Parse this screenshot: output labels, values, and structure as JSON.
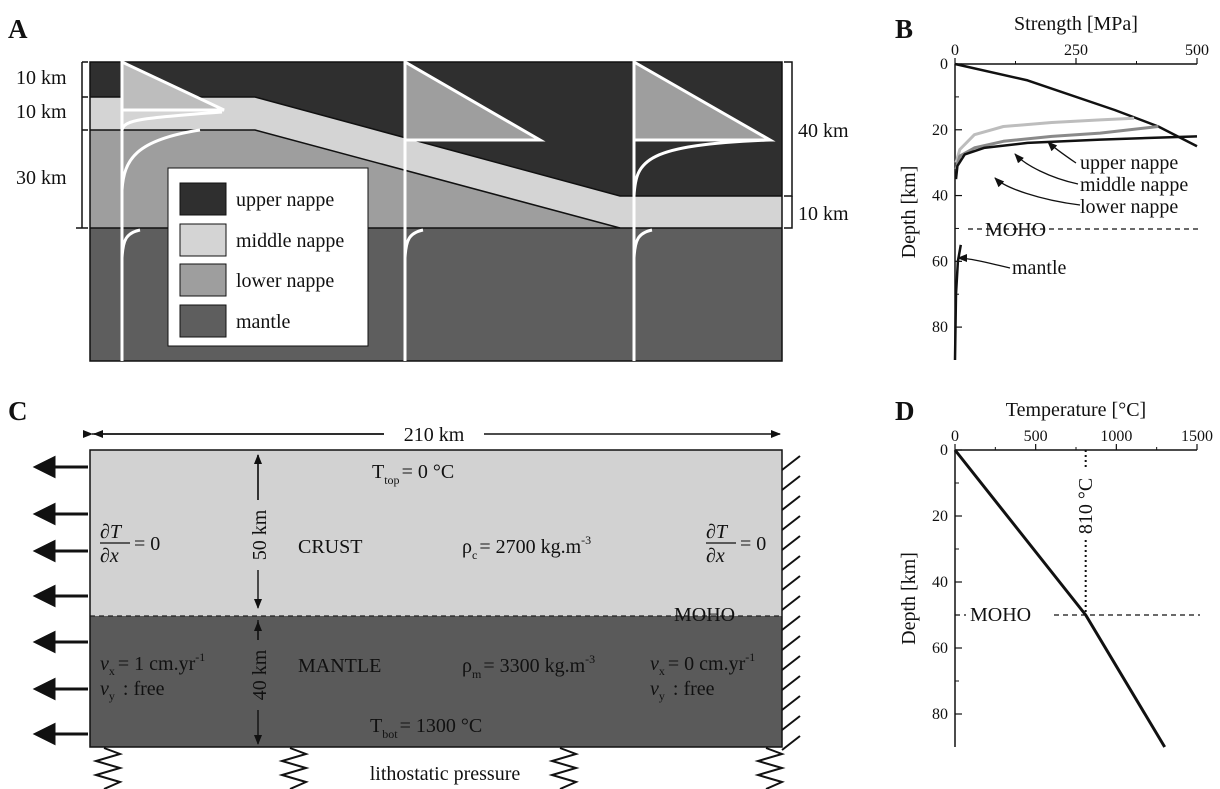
{
  "colors": {
    "upper_nappe": "#2f2f2f",
    "middle_nappe": "#d4d4d4",
    "lower_nappe": "#9e9e9e",
    "mantle": "#5e5e5e",
    "crust_model": "#d2d2d2",
    "mantle_model": "#5a5a5a",
    "curve_white": "#ffffff",
    "ink": "#111111"
  },
  "panel_a": {
    "label": "A",
    "thickness_left": [
      "10 km",
      "10 km",
      "30 km"
    ],
    "thickness_right": [
      "40 km",
      "10 km"
    ],
    "legend": [
      "upper nappe",
      "middle nappe",
      "lower nappe",
      "mantle"
    ]
  },
  "panel_b": {
    "label": "B",
    "annotations": {
      "upper": "upper nappe",
      "middle": "middle nappe",
      "lower": "lower nappe",
      "moho": "MOHO",
      "mantle": "mantle"
    }
  },
  "panel_c": {
    "label": "C",
    "width_label": "210 km",
    "t_top": "T",
    "t_top_sub": "top",
    "t_top_val": "= 0 °C",
    "t_bot": "T",
    "t_bot_sub": "bot",
    "t_bot_val": "= 1300 °C",
    "crust_label": "CRUST",
    "mantle_label": "MANTLE",
    "crust_thickness": "50 km",
    "mantle_thickness": "40 km",
    "rho_c": "ρ",
    "rho_c_sub": "c",
    "rho_c_val": "= 2700 kg.m",
    "rho_m": "ρ",
    "rho_m_sub": "m",
    "rho_m_val": "= 3300 kg.m",
    "rho_exp": "-3",
    "dTdx_num": "∂T",
    "dTdx_den": "∂x",
    "dTdx_eq": "= 0",
    "moho": "MOHO",
    "vx_left": "= 1 cm.yr",
    "vx_right": "= 0 cm.yr",
    "v_exp": "-1",
    "vy": ": free",
    "v_sym": "v",
    "vx_sub": "x",
    "vy_sub": "y",
    "bottom_label": "lithostatic pressure"
  },
  "panel_d": {
    "label": "D",
    "moho": "MOHO",
    "moho_temp": "810 °C"
  },
  "chart_data": [
    {
      "type": "line",
      "title": "",
      "xlabel": "Strength [MPa]",
      "ylabel": "Depth [km]",
      "xlim": [
        0,
        500
      ],
      "ylim": [
        90,
        0
      ],
      "x_ticks": [
        0,
        250,
        500
      ],
      "y_ticks": [
        0,
        20,
        40,
        60,
        80
      ],
      "moho_depth": 50,
      "series": [
        {
          "name": "upper nappe",
          "x": [
            0,
            150,
            330,
            420,
            500
          ],
          "y": [
            0,
            5,
            14,
            19,
            25
          ]
        },
        {
          "name": "middle nappe",
          "x": [
            2,
            10,
            40,
            100,
            200,
            300,
            370
          ],
          "y": [
            30,
            26,
            21.5,
            19,
            17.8,
            17,
            16.5
          ]
        },
        {
          "name": "lower nappe",
          "x": [
            2,
            10,
            40,
            100,
            200,
            300,
            420
          ],
          "y": [
            32,
            28,
            25.5,
            23.5,
            22,
            21,
            19
          ]
        },
        {
          "name": "mantle",
          "x": [
            0,
            2,
            6,
            12
          ],
          "y": [
            90,
            70,
            60,
            55
          ]
        },
        {
          "name": "",
          "x": [
            2,
            5,
            20,
            60,
            150,
            300,
            500
          ],
          "y": [
            35,
            31,
            27.5,
            25.5,
            24,
            23,
            22
          ]
        }
      ]
    },
    {
      "type": "line",
      "title": "",
      "xlabel": "Temperature [°C]",
      "ylabel": "Depth [km]",
      "xlim": [
        0,
        1500
      ],
      "ylim": [
        90,
        0
      ],
      "x_ticks": [
        0,
        500,
        1000,
        1500
      ],
      "y_ticks": [
        0,
        20,
        40,
        60,
        80
      ],
      "moho_depth": 50,
      "moho_temperature": 810,
      "series": [
        {
          "name": "",
          "x": [
            0,
            810,
            1300
          ],
          "y": [
            0,
            50,
            90
          ]
        }
      ]
    }
  ]
}
